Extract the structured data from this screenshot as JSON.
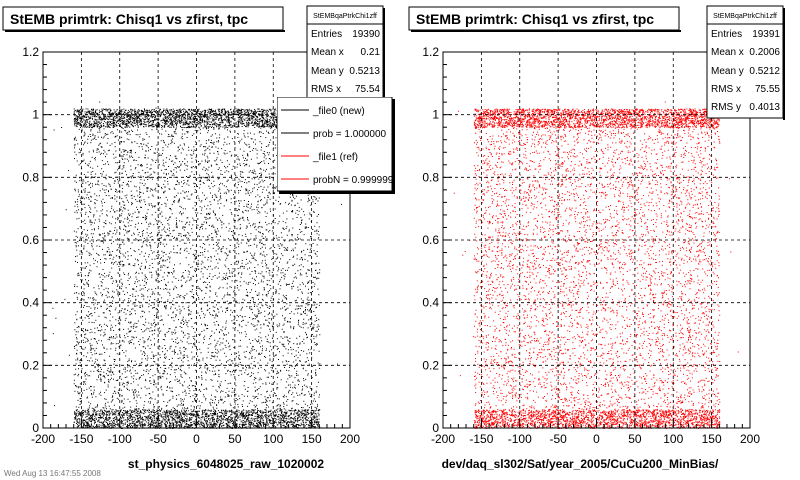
{
  "footer_text": "Wed Aug 13 16:47:55 2008",
  "chart_data": [
    {
      "type": "scatter",
      "title": "StEMB primtrk: Chisq1 vs zfirst, tpc",
      "xlabel": "st_physics_6048025_raw_1020002",
      "ylabel": "",
      "xlim": [
        -200,
        200
      ],
      "ylim": [
        0,
        1.2
      ],
      "x_ticks": [
        "-200",
        "-150",
        "-100",
        "-50",
        "0",
        "50",
        "100",
        "150",
        "200"
      ],
      "y_ticks": [
        "0",
        "0.2",
        "0.4",
        "0.6",
        "0.8",
        "1",
        "1.2"
      ],
      "grid": true,
      "marker_color": "#000000",
      "point_x_range": [
        -160,
        160
      ],
      "dense_bands_y": [
        [
          0.0,
          0.06
        ],
        [
          0.96,
          1.02
        ]
      ],
      "stats": {
        "name": "StEMBqaPtrkChi1zff",
        "rows": [
          {
            "label": "Entries",
            "value": "19390"
          },
          {
            "label": "Mean x",
            "value": "0.21"
          },
          {
            "label": "Mean y",
            "value": "0.5213"
          },
          {
            "label": "RMS x",
            "value": "75.54"
          }
        ]
      },
      "legend": {
        "placement": "top-right",
        "entries": [
          {
            "label": "_file0 (new)",
            "color": "#000000"
          },
          {
            "label": "prob = 1.000000",
            "color": "#000000"
          },
          {
            "label": "_file1 (ref)",
            "color": "#ff0000"
          },
          {
            "label": "probN = 0.999999",
            "color": "#ff0000"
          }
        ]
      }
    },
    {
      "type": "scatter",
      "title": "StEMB primtrk: Chisq1 vs zfirst, tpc",
      "xlabel": "dev/daq_sl302/Sat/year_2005/CuCu200_MinBias/",
      "ylabel": "",
      "xlim": [
        -200,
        200
      ],
      "ylim": [
        0,
        1.2
      ],
      "x_ticks": [
        "-200",
        "-150",
        "-100",
        "-50",
        "0",
        "50",
        "100",
        "150",
        "200"
      ],
      "y_ticks": [
        "0",
        "0.2",
        "0.4",
        "0.6",
        "0.8",
        "1",
        "1.2"
      ],
      "grid": true,
      "marker_color": "#ff0000",
      "point_x_range": [
        -160,
        160
      ],
      "dense_bands_y": [
        [
          0.0,
          0.06
        ],
        [
          0.96,
          1.02
        ]
      ],
      "stats": {
        "name": "StEMBqaPtrkChi1zff",
        "rows": [
          {
            "label": "Entries",
            "value": "19391"
          },
          {
            "label": "Mean x",
            "value": "0.2006"
          },
          {
            "label": "Mean y",
            "value": "0.5212"
          },
          {
            "label": "RMS x",
            "value": "75.55"
          },
          {
            "label": "RMS y",
            "value": "0.4013"
          }
        ]
      }
    }
  ]
}
